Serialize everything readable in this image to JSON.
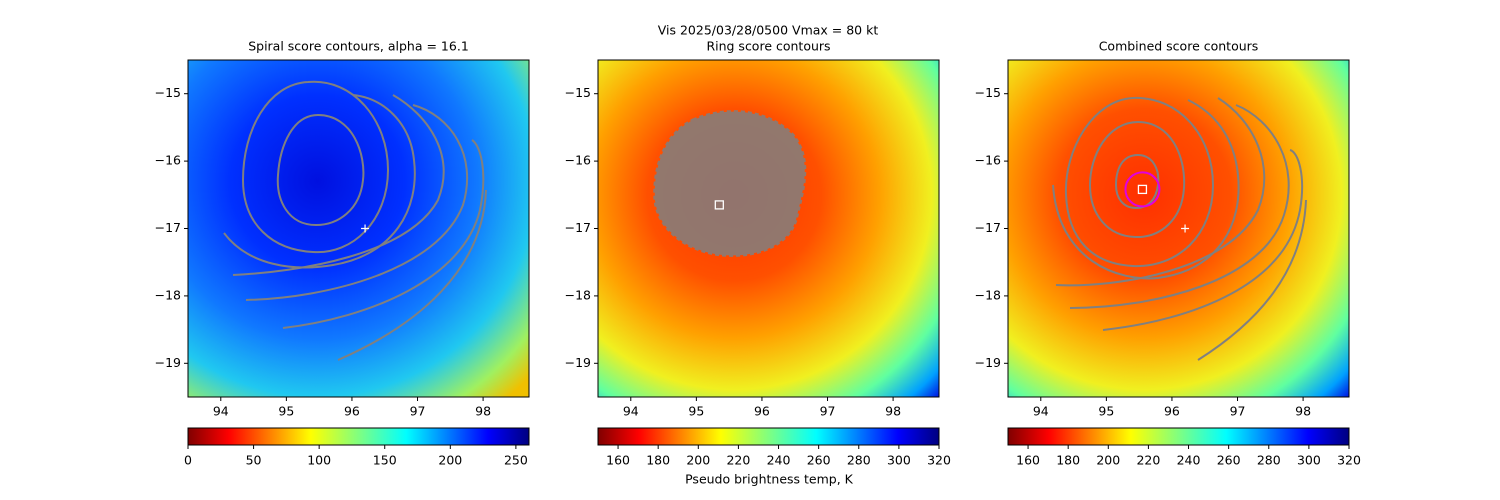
{
  "title": "Vis  2025/03/28/0500    Vmax = 80 kt",
  "colorbar_label": "Pseudo brightness temp, K",
  "chart_data": [
    {
      "type": "heatmap",
      "title": "Spiral score contours, alpha = 16.1",
      "xlim": [
        93.5,
        98.7
      ],
      "ylim": [
        -19.5,
        -14.5
      ],
      "xticks": [
        94,
        95,
        96,
        97,
        98
      ],
      "yticks": [
        {
          "value": -15,
          "label": "−15"
        },
        {
          "value": -16,
          "label": "−16"
        },
        {
          "value": -17,
          "label": "−17"
        },
        {
          "value": -18,
          "label": "−18"
        },
        {
          "value": -19,
          "label": "−19"
        }
      ],
      "colorbar": {
        "lim": [
          0,
          260
        ],
        "ticks": [
          0,
          50,
          100,
          150,
          200,
          250
        ]
      },
      "markers": [
        {
          "shape": "plus",
          "x": 96.2,
          "y": -17.0
        }
      ]
    },
    {
      "type": "heatmap",
      "title": "Ring score contours",
      "xlim": [
        93.5,
        98.7
      ],
      "ylim": [
        -19.5,
        -14.5
      ],
      "xticks": [
        94,
        95,
        96,
        97,
        98
      ],
      "yticks": [
        {
          "value": -15,
          "label": "−15"
        },
        {
          "value": -16,
          "label": "−16"
        },
        {
          "value": -17,
          "label": "−17"
        },
        {
          "value": -18,
          "label": "−18"
        },
        {
          "value": -19,
          "label": "−19"
        }
      ],
      "colorbar": {
        "lim": [
          150,
          320
        ],
        "ticks": [
          160,
          180,
          200,
          220,
          240,
          260,
          280,
          300,
          320
        ]
      },
      "markers": [
        {
          "shape": "square",
          "x": 95.35,
          "y": -16.65
        }
      ]
    },
    {
      "type": "heatmap",
      "title": "Combined score contours",
      "xlim": [
        93.5,
        98.7
      ],
      "ylim": [
        -19.5,
        -14.5
      ],
      "xticks": [
        94,
        95,
        96,
        97,
        98
      ],
      "yticks": [
        {
          "value": -15,
          "label": "−15"
        },
        {
          "value": -16,
          "label": "−16"
        },
        {
          "value": -17,
          "label": "−17"
        },
        {
          "value": -18,
          "label": "−18"
        },
        {
          "value": -19,
          "label": "−19"
        }
      ],
      "colorbar": {
        "lim": [
          150,
          320
        ],
        "ticks": [
          160,
          180,
          200,
          220,
          240,
          260,
          280,
          300,
          320
        ]
      },
      "markers": [
        {
          "shape": "plus",
          "x": 96.2,
          "y": -17.0
        },
        {
          "shape": "square-ring",
          "x": 95.55,
          "y": -16.42
        }
      ]
    }
  ]
}
